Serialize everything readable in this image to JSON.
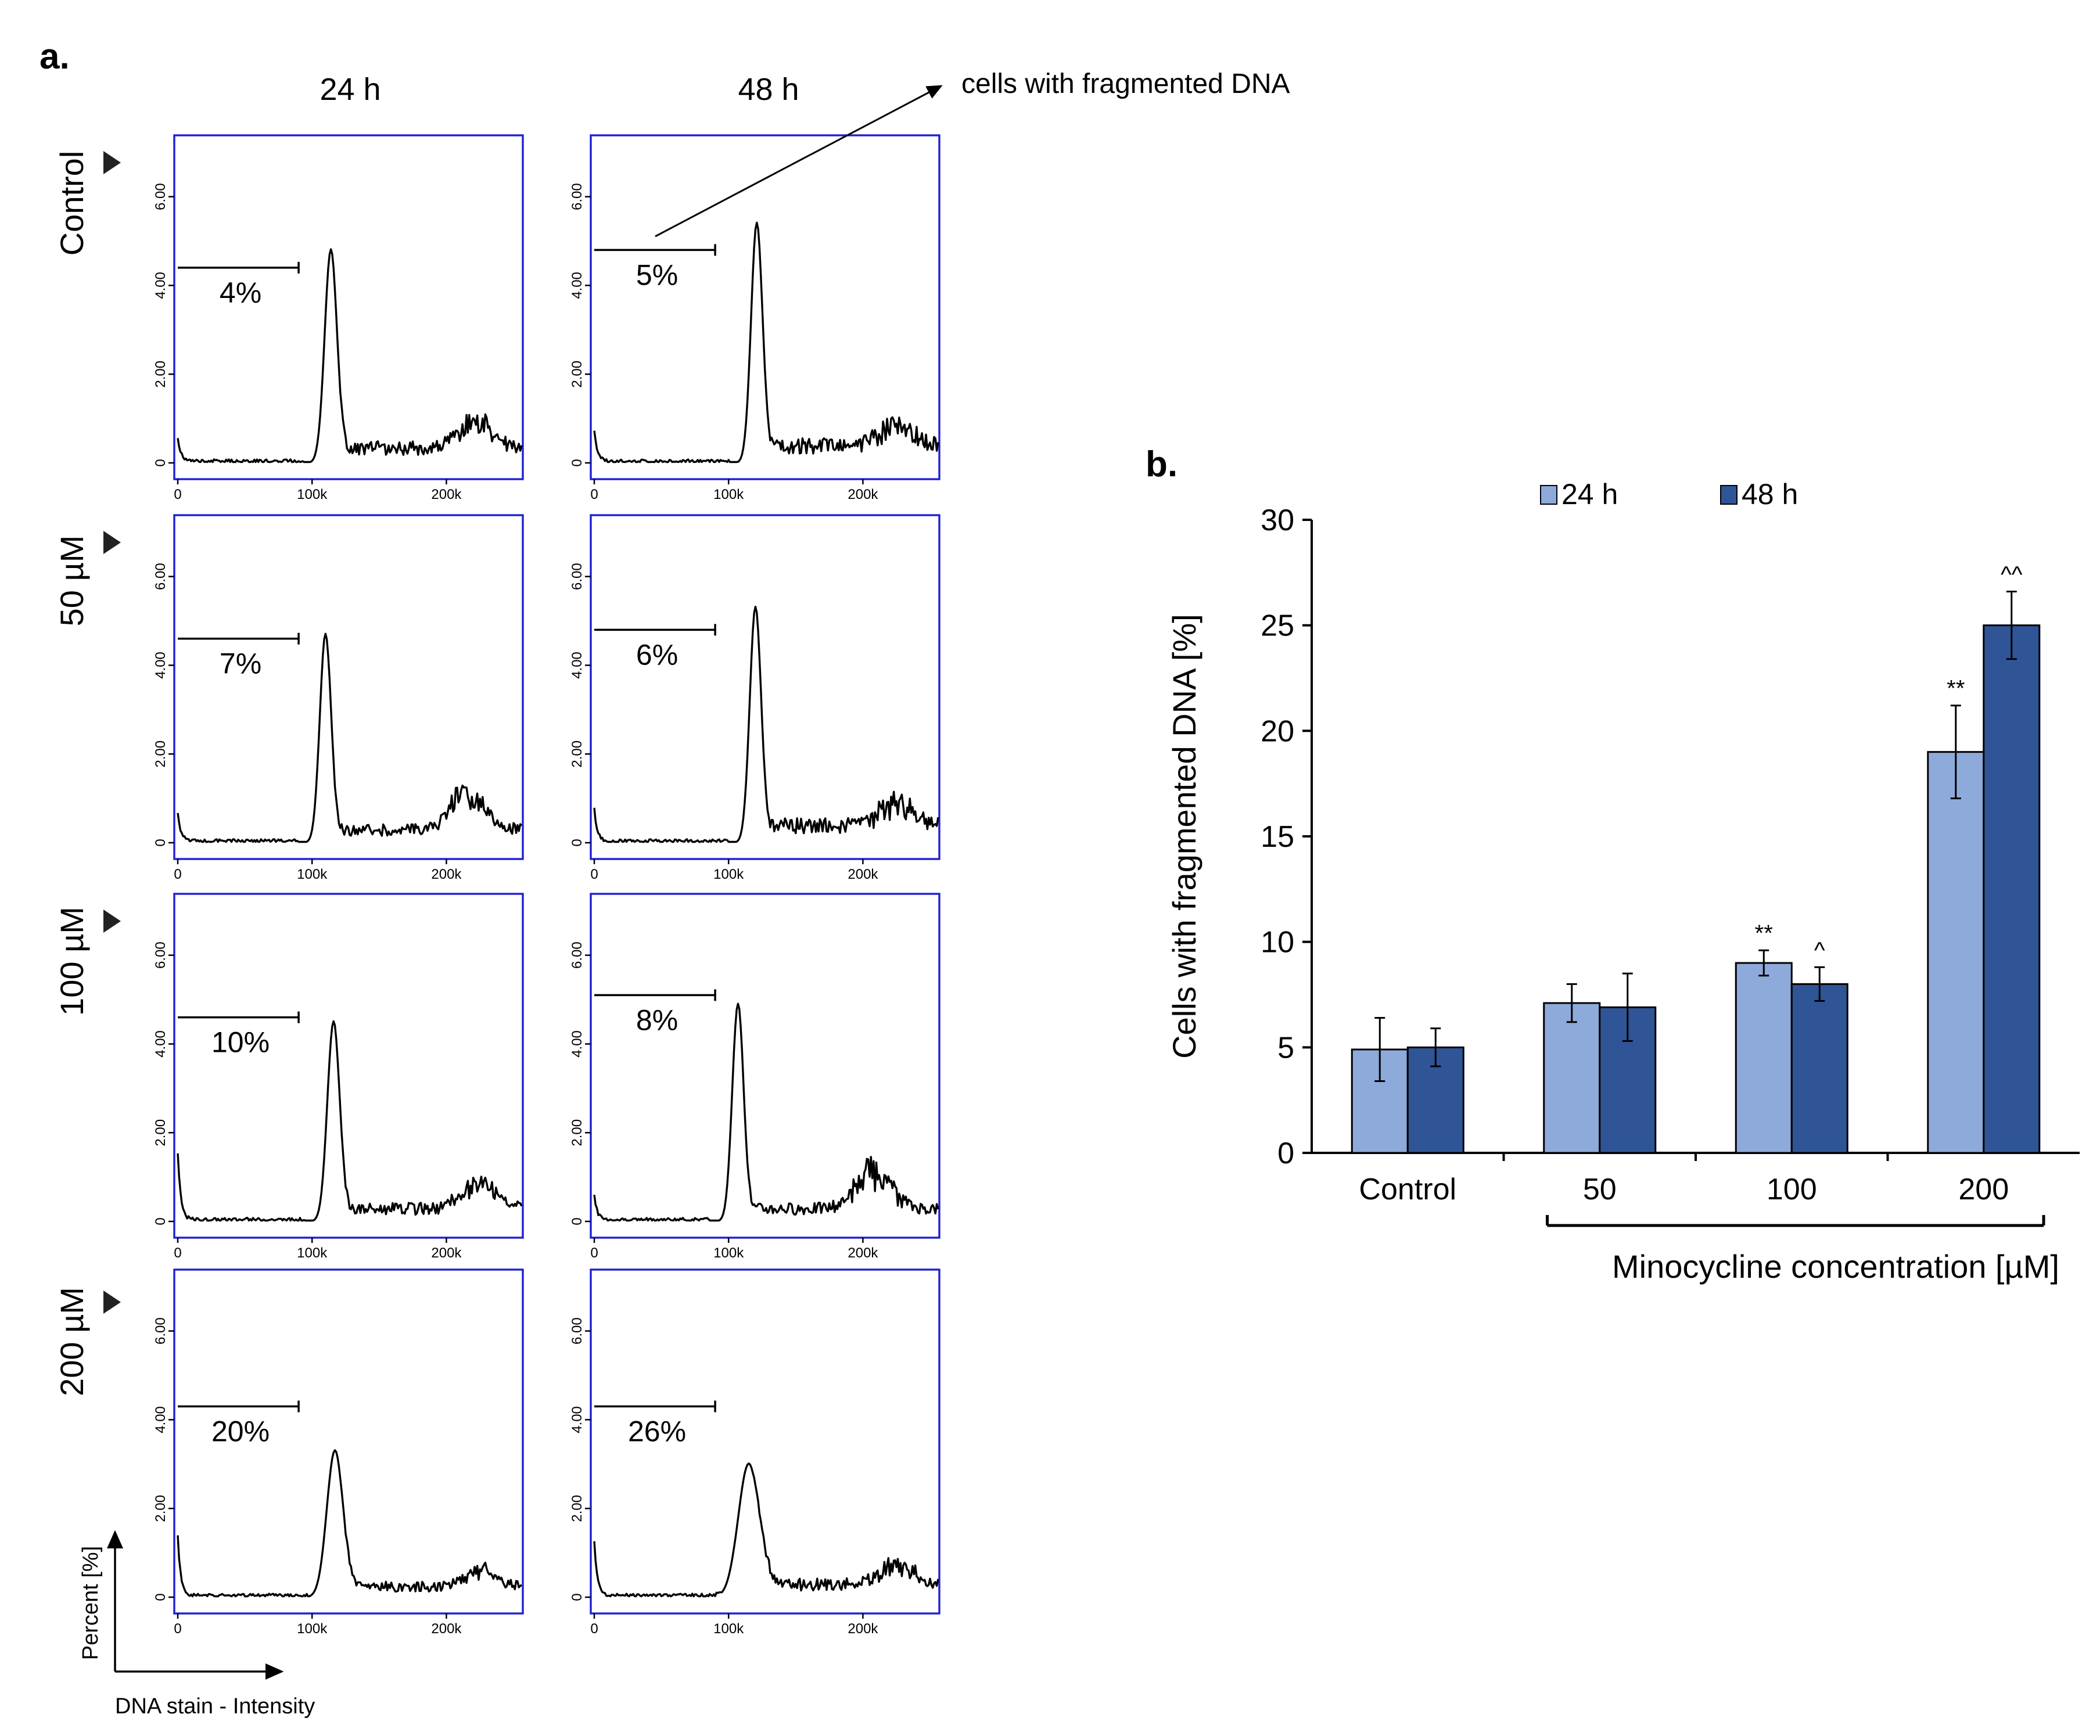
{
  "panel_labels": {
    "a": "a.",
    "b": "b."
  },
  "annotation": "cells with fragmented DNA",
  "panel_a": {
    "column_labels": [
      "24 h",
      "48 h"
    ],
    "row_labels": [
      "Control",
      "50 µM",
      "100 µM",
      "200 µM"
    ],
    "y_ticks": [
      "0",
      "2.00",
      "4.00",
      "6.00"
    ],
    "x_ticks": [
      "0",
      "100k",
      "200k"
    ],
    "y_axis_title": "Percent [%]",
    "x_axis_title": "DNA stain - Intensity"
  },
  "chart_data": [
    {
      "type": "histogram-grid",
      "title": "",
      "xlabel": "DNA stain - Intensity",
      "ylabel": "Percent [%]",
      "xlim": [
        0,
        250000
      ],
      "ylim": [
        0,
        7.2
      ],
      "rows": [
        "Control",
        "50 µM",
        "100 µM",
        "200 µM"
      ],
      "columns": [
        "24 h",
        "48 h"
      ],
      "gate_range": [
        0,
        90000
      ],
      "panels": [
        {
          "row": "Control",
          "column": "24 h",
          "gate_label": "4%",
          "gate_y": 4.4,
          "peak_x": 114000,
          "peak_height": 4.8,
          "peak_width": 6500,
          "g2_x": 222000,
          "g2_height": 0.55,
          "baseline": 0.35,
          "start_spike": 0.55,
          "seed": 11
        },
        {
          "row": "Control",
          "column": "48 h",
          "gate_label": "5%",
          "gate_y": 4.8,
          "peak_x": 121000,
          "peak_height": 5.4,
          "peak_width": 6000,
          "g2_x": 225000,
          "g2_height": 0.45,
          "baseline": 0.4,
          "start_spike": 0.7,
          "seed": 12
        },
        {
          "row": "50 µM",
          "column": "24 h",
          "gate_label": "7%",
          "gate_y": 4.6,
          "peak_x": 110000,
          "peak_height": 4.7,
          "peak_width": 6000,
          "g2_x": 215000,
          "g2_height": 0.8,
          "baseline": 0.3,
          "start_spike": 0.65,
          "seed": 21
        },
        {
          "row": "50 µM",
          "column": "48 h",
          "gate_label": "6%",
          "gate_y": 4.8,
          "peak_x": 120000,
          "peak_height": 5.3,
          "peak_width": 6000,
          "g2_x": 225000,
          "g2_height": 0.5,
          "baseline": 0.4,
          "start_spike": 0.75,
          "seed": 22
        },
        {
          "row": "100 µM",
          "column": "24 h",
          "gate_label": "10%",
          "gate_y": 4.6,
          "peak_x": 116000,
          "peak_height": 4.5,
          "peak_width": 6500,
          "g2_x": 225000,
          "g2_height": 0.55,
          "baseline": 0.3,
          "start_spike": 1.5,
          "seed": 31
        },
        {
          "row": "100 µM",
          "column": "48 h",
          "gate_label": "8%",
          "gate_y": 5.1,
          "peak_x": 107000,
          "peak_height": 4.9,
          "peak_width": 6000,
          "g2_x": 208000,
          "g2_height": 0.85,
          "baseline": 0.3,
          "start_spike": 0.55,
          "seed": 32
        },
        {
          "row": "200 µM",
          "column": "24 h",
          "gate_label": "20%",
          "gate_y": 4.3,
          "peak_x": 117000,
          "peak_height": 3.3,
          "peak_width": 8500,
          "g2_x": 225000,
          "g2_height": 0.35,
          "baseline": 0.25,
          "start_spike": 1.35,
          "seed": 41
        },
        {
          "row": "200 µM",
          "column": "48 h",
          "gate_label": "26%",
          "gate_y": 4.3,
          "peak_x": 115000,
          "peak_height": 3.0,
          "peak_width": 11000,
          "g2_x": 225000,
          "g2_height": 0.4,
          "baseline": 0.3,
          "start_spike": 1.2,
          "seed": 42
        }
      ]
    },
    {
      "type": "bar",
      "title": "",
      "xlabel": "Minocycline concentration [µM]",
      "ylabel": "Cells with fragmented DNA [%]",
      "ylim": [
        0,
        30
      ],
      "yticks": [
        0,
        5,
        10,
        15,
        20,
        25,
        30
      ],
      "categories": [
        "Control",
        "50",
        "100",
        "200"
      ],
      "series": [
        {
          "name": "24 h",
          "color": "#8eaadb",
          "values": [
            4.9,
            7.1,
            9.0,
            19.0
          ],
          "errors": [
            1.5,
            0.9,
            0.6,
            2.2
          ],
          "marks": [
            "",
            "",
            "**",
            "**"
          ]
        },
        {
          "name": "48 h",
          "color": "#2f5597",
          "values": [
            5.0,
            6.9,
            8.0,
            25.0
          ],
          "errors": [
            0.9,
            1.6,
            0.8,
            1.6
          ],
          "marks": [
            "",
            "",
            "^",
            "^^"
          ]
        }
      ],
      "legend": "top"
    }
  ]
}
